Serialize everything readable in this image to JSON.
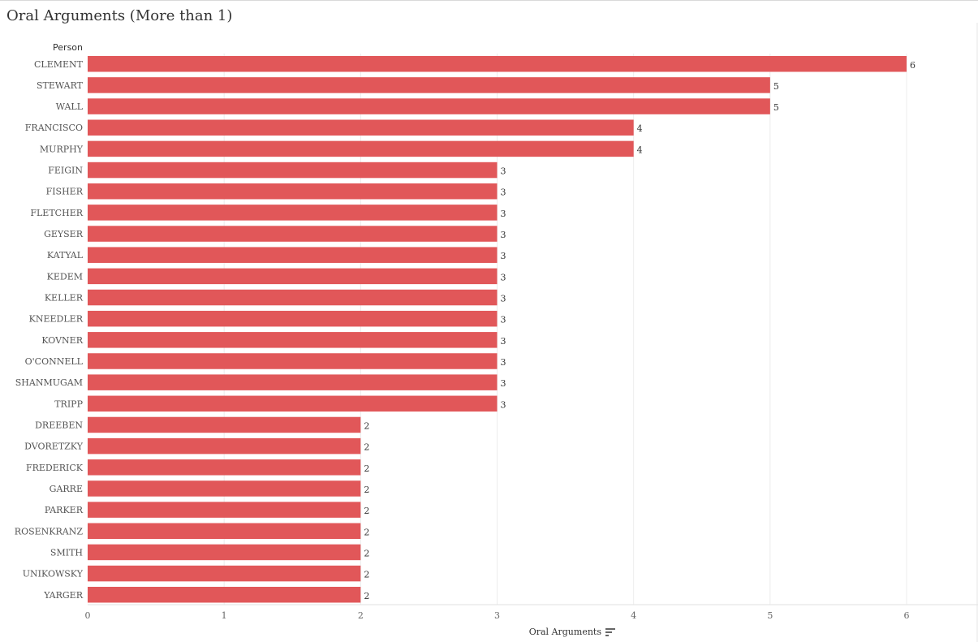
{
  "title": "Oral Arguments (More than 1)",
  "chart_data": {
    "type": "bar",
    "orientation": "horizontal",
    "title": "Oral Arguments (More than 1)",
    "ylabel": "Person",
    "xlabel": "Oral Arguments",
    "xlim": [
      0,
      6.5
    ],
    "xticks": [
      0,
      1,
      2,
      3,
      4,
      5,
      6
    ],
    "grid": true,
    "data_labels": true,
    "bar_color": "#e15759",
    "categories": [
      "CLEMENT",
      "STEWART",
      "WALL",
      "FRANCISCO",
      "MURPHY",
      "FEIGIN",
      "FISHER",
      "FLETCHER",
      "GEYSER",
      "KATYAL",
      "KEDEM",
      "KELLER",
      "KNEEDLER",
      "KOVNER",
      "O'CONNELL",
      "SHANMUGAM",
      "TRIPP",
      "DREEBEN",
      "DVORETZKY",
      "FREDERICK",
      "GARRE",
      "PARKER",
      "ROSENKRANZ",
      "SMITH",
      "UNIKOWSKY",
      "YARGER"
    ],
    "values": [
      6,
      5,
      5,
      4,
      4,
      3,
      3,
      3,
      3,
      3,
      3,
      3,
      3,
      3,
      3,
      3,
      3,
      2,
      2,
      2,
      2,
      2,
      2,
      2,
      2,
      2
    ]
  },
  "sort_icon": "sort-descending-icon"
}
